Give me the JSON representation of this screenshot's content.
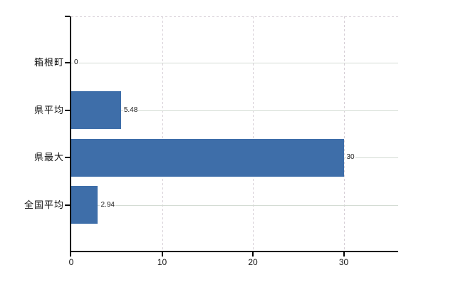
{
  "chart_data": {
    "type": "bar",
    "orientation": "horizontal",
    "title": "",
    "categories": [
      "箱根町",
      "県平均",
      "県最大",
      "全国平均"
    ],
    "values": [
      0,
      5.48,
      30,
      2.94
    ],
    "value_labels": [
      "0",
      "5.48",
      "30",
      "2.94"
    ],
    "x_ticks": [
      0,
      10,
      20,
      30
    ],
    "x_tick_labels": [
      "0",
      "10",
      "20",
      "30"
    ],
    "xlim": [
      0,
      36
    ],
    "grid": {
      "horizontal": "solid",
      "vertical": "dashed",
      "top_border": "dashed"
    },
    "legend": "none",
    "colors": {
      "bar": "#3e6ea9",
      "h_grid": "#d3dbd3",
      "v_grid": "#d6cfd6",
      "axis": "#000000",
      "value_label": "#222222",
      "category_label": "#111111",
      "tick_label": "#111111",
      "background": "#ffffff"
    }
  }
}
